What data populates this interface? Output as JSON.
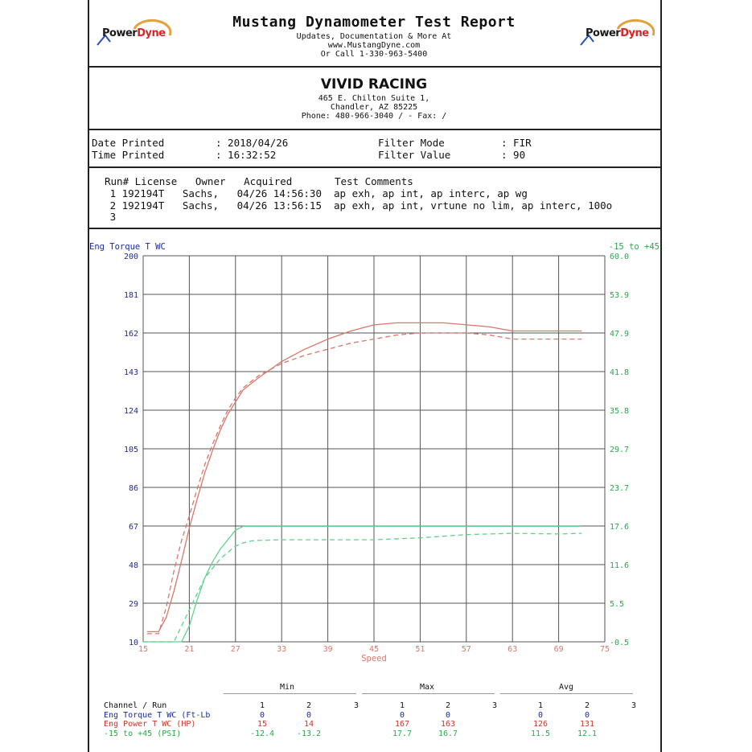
{
  "header": {
    "title": "Mustang Dynamometer Test Report",
    "line1": "Updates, Documentation & More At",
    "line2": "www.MustangDyne.com",
    "line3": "Or Call 1-330-963-5400",
    "logo_text_a": "Power",
    "logo_text_b": "Dyne"
  },
  "shop": {
    "name": "VIVID RACING",
    "addr1": "465 E. Chilton Suite 1,",
    "addr2": "Chandler, AZ  85225",
    "phone": "Phone: 480-966-3040 /  - Fax:  /"
  },
  "info": {
    "date_label": "Date Printed",
    "date_value": ": 2018/04/26",
    "time_label": "Time Printed",
    "time_value": ": 16:32:52",
    "filter_mode_label": "Filter Mode",
    "filter_mode_value": ": FIR",
    "filter_value_label": "Filter Value",
    "filter_value_value": ": 90"
  },
  "runs": {
    "header": "Run# License   Owner   Acquired       Test Comments",
    "rows": [
      "   1 192194T   Sachs,   04/26 14:56:30  ap exh, ap int, ap interc, ap wg",
      "   2 192194T   Sachs,   04/26 13:56:15  ap exh, ap int, vrtune no lim, ap interc, 100o",
      "   3"
    ]
  },
  "chart_data": {
    "type": "line",
    "left_axis_title": "Eng Torque T WC",
    "right_axis_title": "-15 to +45",
    "xlabel": "Speed",
    "xlim": [
      15,
      75
    ],
    "x_ticks": [
      "15",
      "21",
      "27",
      "33",
      "39",
      "45",
      "51",
      "57",
      "63",
      "69",
      "75"
    ],
    "left_ticks": [
      "10",
      "29",
      "48",
      "67",
      "86",
      "105",
      "124",
      "143",
      "162",
      "181",
      "200"
    ],
    "ylim_left": [
      10,
      200
    ],
    "right_ticks": [
      "-0.5",
      "5.5",
      "11.6",
      "17.6",
      "23.7",
      "29.7",
      "35.8",
      "41.8",
      "47.9",
      "53.9",
      "60.0"
    ],
    "ylim_right": [
      -0.5,
      60.0
    ],
    "colors": {
      "power": "#d9776a",
      "boost": "#5fd38a",
      "axis_left": "#1c2a9c",
      "axis_right": "#2aa84a",
      "axis_x": "#d9776a"
    },
    "series": [
      {
        "name": "Eng Power T WC (HP)",
        "run": 1,
        "axis": "left",
        "style": "solid",
        "x": [
          15.5,
          17,
          18,
          19,
          20,
          21,
          22,
          23,
          24,
          25,
          26,
          27,
          28,
          30,
          33,
          36,
          39,
          42,
          45,
          48,
          51,
          54,
          57,
          60,
          63,
          66,
          69,
          72
        ],
        "y": [
          15,
          15,
          22,
          35,
          50,
          66,
          80,
          93,
          104,
          114,
          122,
          128,
          134,
          140,
          148,
          154,
          159,
          163,
          166,
          167,
          167,
          167,
          166,
          165,
          163,
          163,
          163,
          163
        ]
      },
      {
        "name": "Eng Power T WC (HP)",
        "run": 2,
        "axis": "left",
        "style": "dashed",
        "x": [
          15.5,
          17,
          18,
          19,
          20,
          21,
          22,
          23,
          24,
          25,
          26,
          27,
          28,
          30,
          33,
          36,
          39,
          42,
          45,
          48,
          51,
          54,
          57,
          60,
          63,
          66,
          69,
          72
        ],
        "y": [
          14,
          14,
          27,
          45,
          60,
          72,
          85,
          97,
          107,
          116,
          124,
          130,
          135,
          141,
          147,
          151,
          154,
          157,
          159,
          161,
          162,
          162,
          162,
          161,
          159,
          159,
          159,
          159
        ]
      },
      {
        "name": "-15 to +45 (PSI)",
        "run": 1,
        "axis": "right",
        "style": "solid",
        "x": [
          15,
          19,
          20,
          21,
          22,
          23,
          24,
          25,
          26,
          27,
          28,
          30,
          33,
          36,
          39,
          45,
          51,
          57,
          63,
          69,
          72
        ],
        "y": [
          -0.5,
          -0.5,
          -0.5,
          2,
          6,
          9.5,
          12,
          14,
          15.5,
          17,
          17.6,
          17.6,
          17.6,
          17.6,
          17.6,
          17.6,
          17.6,
          17.6,
          17.6,
          17.6,
          17.6
        ]
      },
      {
        "name": "-15 to +45 (PSI)",
        "run": 2,
        "axis": "right",
        "style": "dashed",
        "x": [
          15,
          18,
          19,
          20,
          21,
          22,
          23,
          24,
          25,
          26,
          27,
          28,
          29,
          30,
          33,
          39,
          45,
          51,
          57,
          63,
          69,
          72
        ],
        "y": [
          -0.5,
          -0.5,
          -0.5,
          2,
          4.5,
          7,
          9.5,
          11,
          12.5,
          13.5,
          14.5,
          15,
          15.3,
          15.4,
          15.5,
          15.5,
          15.5,
          15.8,
          16.3,
          16.5,
          16.4,
          16.5
        ]
      }
    ]
  },
  "stats": {
    "min_label": "Min",
    "max_label": "Max",
    "avg_label": "Avg",
    "cols_header": "     1        2        3",
    "rows": [
      {
        "label": "Channel / Run",
        "min": [
          "1",
          "2",
          "3"
        ],
        "max": [
          "1",
          "2",
          "3"
        ],
        "avg": [
          "1",
          "2",
          "3"
        ],
        "color": "#111"
      },
      {
        "label": "Eng Torque T WC (Ft-Lb",
        "min": [
          "0",
          "0",
          ""
        ],
        "max": [
          "0",
          "0",
          ""
        ],
        "avg": [
          "0",
          "0",
          ""
        ],
        "color": "#1c2a9c"
      },
      {
        "label": "Eng Power T WC (HP)",
        "min": [
          "15",
          "14",
          ""
        ],
        "max": [
          "167",
          "163",
          ""
        ],
        "avg": [
          "126",
          "131",
          ""
        ],
        "color": "#c8362b"
      },
      {
        "label": "-15 to +45 (PSI)",
        "min": [
          "-12.4",
          "-13.2",
          ""
        ],
        "max": [
          "17.7",
          "16.7",
          ""
        ],
        "avg": [
          "11.5",
          "12.1",
          ""
        ],
        "color": "#2aa84a"
      }
    ]
  }
}
